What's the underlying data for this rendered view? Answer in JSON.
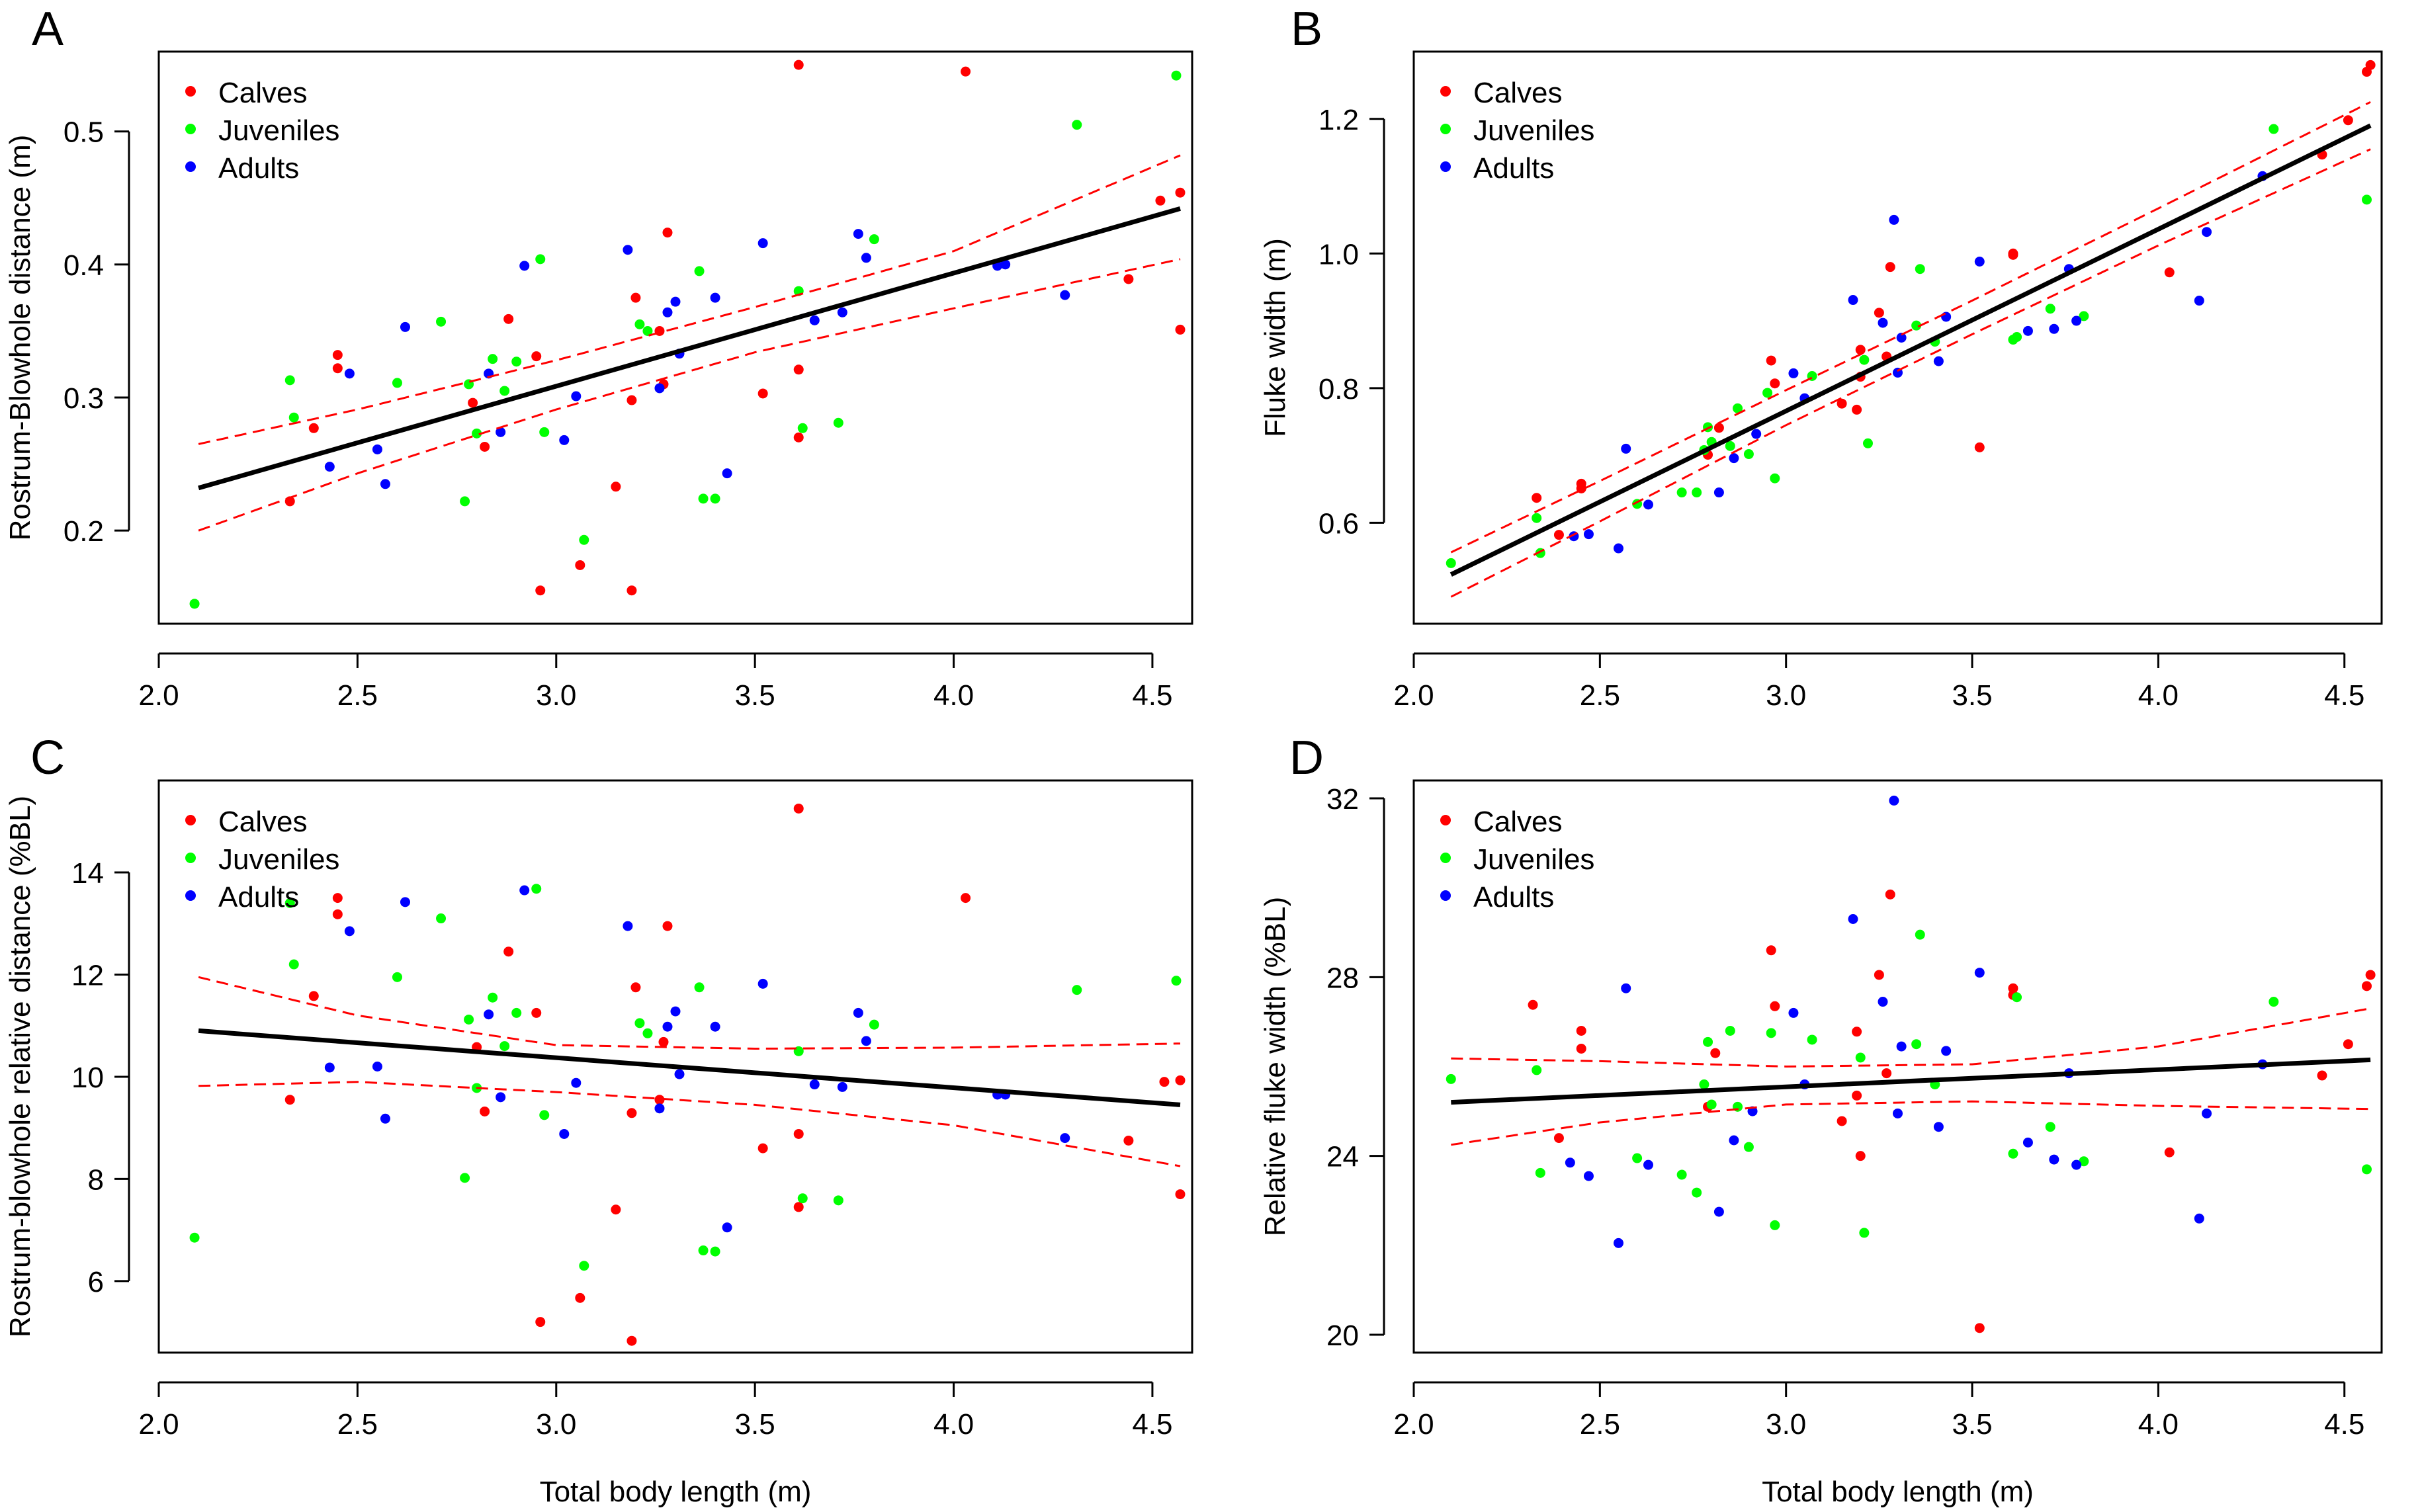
{
  "colors": {
    "calves": "#FF0000",
    "juveniles": "#00FF00",
    "adults": "#0000FF",
    "fit": "#000000",
    "ci": "#FF0000"
  },
  "chart_data": [
    {
      "type": "scatter",
      "panel_letter": "A",
      "xlabel": "",
      "ylabel": "Rostrum-Blowhole distance (m)",
      "xlim": [
        2.0,
        4.6
      ],
      "ylim": [
        0.13,
        0.56
      ],
      "xticks": [
        "2.0",
        "2.5",
        "3.0",
        "3.5",
        "4.0",
        "4.5"
      ],
      "yticks": [
        "0.2",
        "0.3",
        "0.4",
        "0.5"
      ],
      "legend": [
        "Calves",
        "Juveniles",
        "Adults"
      ],
      "legend_position": "top-left",
      "fit": {
        "x": [
          2.1,
          4.57
        ],
        "y": [
          0.232,
          0.442
        ]
      },
      "ci_upper": {
        "x": [
          2.1,
          2.5,
          3.0,
          3.5,
          4.0,
          4.57
        ],
        "y": [
          0.265,
          0.291,
          0.328,
          0.368,
          0.41,
          0.482
        ]
      },
      "ci_lower": {
        "x": [
          2.1,
          2.5,
          3.0,
          3.5,
          4.0,
          4.57
        ],
        "y": [
          0.2,
          0.243,
          0.291,
          0.334,
          0.367,
          0.404
        ]
      },
      "series": [
        {
          "name": "Calves",
          "x": [
            2.33,
            2.39,
            2.45,
            2.45,
            2.79,
            2.82,
            2.88,
            2.95,
            2.96,
            3.06,
            3.15,
            3.19,
            3.19,
            3.2,
            3.26,
            3.27,
            3.28,
            3.52,
            3.61,
            3.61,
            3.61,
            4.03,
            4.44,
            4.52,
            4.57,
            4.57
          ],
          "y": [
            0.222,
            0.277,
            0.332,
            0.322,
            0.296,
            0.263,
            0.359,
            0.331,
            0.155,
            0.174,
            0.233,
            0.155,
            0.298,
            0.375,
            0.35,
            0.31,
            0.424,
            0.303,
            0.55,
            0.321,
            0.27,
            0.545,
            0.389,
            0.448,
            0.454,
            0.351
          ]
        },
        {
          "name": "Juveniles",
          "x": [
            2.09,
            2.33,
            2.34,
            2.6,
            2.71,
            2.77,
            2.78,
            2.8,
            2.84,
            2.87,
            2.9,
            2.96,
            2.97,
            3.07,
            3.21,
            3.23,
            3.36,
            3.37,
            3.4,
            3.61,
            3.62,
            3.71,
            3.8,
            4.31,
            4.56
          ],
          "y": [
            0.145,
            0.313,
            0.285,
            0.311,
            0.357,
            0.222,
            0.31,
            0.273,
            0.329,
            0.305,
            0.327,
            0.404,
            0.274,
            0.193,
            0.355,
            0.35,
            0.395,
            0.224,
            0.224,
            0.38,
            0.277,
            0.281,
            0.419,
            0.505,
            0.542
          ]
        },
        {
          "name": "Adults",
          "x": [
            2.43,
            2.48,
            2.55,
            2.57,
            2.62,
            2.83,
            2.86,
            2.92,
            3.02,
            3.05,
            3.18,
            3.26,
            3.28,
            3.3,
            3.31,
            3.4,
            3.43,
            3.52,
            3.65,
            3.72,
            3.76,
            3.78,
            4.11,
            4.13,
            4.28
          ],
          "y": [
            0.248,
            0.318,
            0.261,
            0.235,
            0.353,
            0.318,
            0.274,
            0.399,
            0.268,
            0.301,
            0.411,
            0.307,
            0.364,
            0.372,
            0.333,
            0.375,
            0.243,
            0.416,
            0.358,
            0.364,
            0.423,
            0.405,
            0.399,
            0.4,
            0.377
          ]
        }
      ]
    },
    {
      "type": "scatter",
      "panel_letter": "B",
      "xlabel": "",
      "ylabel": "Fluke width (m)",
      "xlim": [
        2.0,
        4.6
      ],
      "ylim": [
        0.45,
        1.3
      ],
      "xticks": [
        "2.0",
        "2.5",
        "3.0",
        "3.5",
        "4.0",
        "4.5"
      ],
      "yticks": [
        "0.6",
        "0.8",
        "1.0",
        "1.2"
      ],
      "legend": [
        "Calves",
        "Juveniles",
        "Adults"
      ],
      "legend_position": "top-left",
      "fit": {
        "x": [
          2.1,
          4.57
        ],
        "y": [
          0.523,
          1.19
        ]
      },
      "ci_upper": {
        "x": [
          2.1,
          2.5,
          3.0,
          3.5,
          4.0,
          4.57
        ],
        "y": [
          0.556,
          0.662,
          0.797,
          0.93,
          1.067,
          1.225
        ]
      },
      "ci_lower": {
        "x": [
          2.1,
          2.5,
          3.0,
          3.5,
          4.0,
          4.57
        ],
        "y": [
          0.49,
          0.602,
          0.745,
          0.88,
          1.012,
          1.155
        ]
      },
      "series": [
        {
          "name": "Calves",
          "x": [
            2.33,
            2.39,
            2.45,
            2.45,
            2.79,
            2.82,
            2.96,
            2.97,
            3.15,
            3.19,
            3.2,
            3.2,
            3.25,
            3.27,
            3.28,
            3.52,
            3.61,
            3.61,
            4.03,
            4.44,
            4.51,
            4.56,
            4.57
          ],
          "y": [
            0.637,
            0.582,
            0.651,
            0.658,
            0.701,
            0.741,
            0.841,
            0.807,
            0.777,
            0.768,
            0.857,
            0.817,
            0.912,
            0.847,
            0.98,
            0.712,
            0.998,
            1.0,
            0.972,
            1.147,
            1.198,
            1.27,
            1.28
          ]
        },
        {
          "name": "Juveniles",
          "x": [
            2.1,
            2.33,
            2.34,
            2.6,
            2.72,
            2.76,
            2.78,
            2.79,
            2.8,
            2.85,
            2.87,
            2.9,
            2.95,
            2.97,
            3.07,
            3.21,
            3.22,
            3.35,
            3.36,
            3.4,
            3.61,
            3.62,
            3.71,
            3.8,
            4.31,
            4.56
          ],
          "y": [
            0.54,
            0.607,
            0.555,
            0.628,
            0.645,
            0.645,
            0.708,
            0.742,
            0.72,
            0.714,
            0.77,
            0.702,
            0.793,
            0.666,
            0.818,
            0.842,
            0.718,
            0.893,
            0.977,
            0.869,
            0.872,
            0.876,
            0.918,
            0.907,
            1.185,
            1.08
          ]
        },
        {
          "name": "Adults",
          "x": [
            2.43,
            2.47,
            2.55,
            2.57,
            2.63,
            2.82,
            2.86,
            2.92,
            3.02,
            3.05,
            3.18,
            3.26,
            3.29,
            3.3,
            3.31,
            3.41,
            3.43,
            3.52,
            3.65,
            3.72,
            3.76,
            3.78,
            4.11,
            4.13,
            4.28
          ],
          "y": [
            0.58,
            0.583,
            0.562,
            0.71,
            0.627,
            0.645,
            0.696,
            0.732,
            0.822,
            0.785,
            0.931,
            0.897,
            1.05,
            0.823,
            0.875,
            0.84,
            0.906,
            0.988,
            0.885,
            0.888,
            0.977,
            0.9,
            0.93,
            1.032,
            1.115
          ]
        }
      ]
    },
    {
      "type": "scatter",
      "panel_letter": "C",
      "xlabel": "Total body length (m)",
      "ylabel": "Rostrum-blowhole relative distance (%BL)",
      "xlim": [
        2.0,
        4.6
      ],
      "ylim": [
        4.6,
        15.8
      ],
      "xticks": [
        "2.0",
        "2.5",
        "3.0",
        "3.5",
        "4.0",
        "4.5"
      ],
      "yticks": [
        "6",
        "8",
        "10",
        "12",
        "14"
      ],
      "legend": [
        "Calves",
        "Juveniles",
        "Adults"
      ],
      "legend_position": "top-left",
      "fit": {
        "x": [
          2.1,
          4.57
        ],
        "y": [
          10.9,
          9.45
        ]
      },
      "ci_upper": {
        "x": [
          2.1,
          2.5,
          3.0,
          3.5,
          4.0,
          4.57
        ],
        "y": [
          11.95,
          11.2,
          10.62,
          10.55,
          10.57,
          10.65
        ]
      },
      "ci_lower": {
        "x": [
          2.1,
          2.5,
          3.0,
          3.5,
          4.0,
          4.57
        ],
        "y": [
          9.82,
          9.9,
          9.7,
          9.45,
          9.05,
          8.25
        ]
      },
      "series": [
        {
          "name": "Calves",
          "x": [
            2.33,
            2.39,
            2.45,
            2.45,
            2.8,
            2.82,
            2.88,
            2.95,
            2.96,
            3.06,
            3.15,
            3.19,
            3.19,
            3.2,
            3.26,
            3.27,
            3.28,
            3.52,
            3.61,
            3.61,
            3.61,
            4.03,
            4.44,
            4.53,
            4.57,
            4.57
          ],
          "y": [
            9.55,
            11.58,
            13.5,
            13.18,
            10.58,
            9.32,
            12.45,
            11.25,
            5.2,
            5.67,
            7.4,
            4.83,
            9.29,
            11.75,
            9.55,
            10.68,
            12.95,
            8.6,
            15.25,
            8.88,
            7.45,
            13.5,
            8.75,
            9.9,
            9.93,
            7.7
          ]
        },
        {
          "name": "Juveniles",
          "x": [
            2.09,
            2.33,
            2.34,
            2.6,
            2.71,
            2.77,
            2.78,
            2.8,
            2.84,
            2.87,
            2.9,
            2.95,
            2.97,
            3.07,
            3.21,
            3.23,
            3.36,
            3.37,
            3.4,
            3.61,
            3.62,
            3.71,
            3.8,
            4.31,
            4.56
          ],
          "y": [
            6.85,
            13.4,
            12.2,
            11.95,
            13.1,
            8.02,
            11.12,
            9.78,
            11.55,
            10.6,
            11.25,
            13.68,
            9.25,
            6.3,
            11.05,
            10.85,
            11.75,
            6.6,
            6.58,
            10.5,
            7.62,
            7.58,
            11.02,
            11.7,
            11.88
          ]
        },
        {
          "name": "Adults",
          "x": [
            2.43,
            2.48,
            2.55,
            2.57,
            2.62,
            2.83,
            2.86,
            2.92,
            3.02,
            3.05,
            3.18,
            3.26,
            3.28,
            3.3,
            3.31,
            3.4,
            3.43,
            3.52,
            3.65,
            3.72,
            3.76,
            3.78,
            4.11,
            4.13,
            4.28
          ],
          "y": [
            10.18,
            12.85,
            10.2,
            9.18,
            13.42,
            11.22,
            9.6,
            13.65,
            8.88,
            9.88,
            12.95,
            9.38,
            10.98,
            11.28,
            10.05,
            10.98,
            7.05,
            11.82,
            9.85,
            9.8,
            11.25,
            10.7,
            9.65,
            9.65,
            8.8
          ]
        }
      ]
    },
    {
      "type": "scatter",
      "panel_letter": "D",
      "xlabel": "Total body length (m)",
      "ylabel": "Relative fluke width (%BL)",
      "xlim": [
        2.0,
        4.6
      ],
      "ylim": [
        19.6,
        32.4
      ],
      "xticks": [
        "2.0",
        "2.5",
        "3.0",
        "3.5",
        "4.0",
        "4.5"
      ],
      "yticks": [
        "20",
        "24",
        "28",
        "32"
      ],
      "legend": [
        "Calves",
        "Juveniles",
        "Adults"
      ],
      "legend_position": "top-left",
      "fit": {
        "x": [
          2.1,
          4.57
        ],
        "y": [
          25.2,
          26.15
        ]
      },
      "ci_upper": {
        "x": [
          2.1,
          2.5,
          3.0,
          3.5,
          4.0,
          4.57
        ],
        "y": [
          26.18,
          26.12,
          26.0,
          26.05,
          26.45,
          27.3
        ]
      },
      "ci_lower": {
        "x": [
          2.1,
          2.5,
          3.0,
          3.5,
          4.0,
          4.57
        ],
        "y": [
          24.25,
          24.75,
          25.15,
          25.22,
          25.12,
          25.05
        ]
      },
      "series": [
        {
          "name": "Calves",
          "x": [
            2.32,
            2.39,
            2.45,
            2.45,
            2.79,
            2.81,
            2.96,
            2.97,
            3.15,
            3.19,
            3.19,
            3.2,
            3.25,
            3.27,
            3.28,
            3.52,
            3.61,
            3.61,
            4.03,
            4.44,
            4.51,
            4.56,
            4.57
          ],
          "y": [
            27.38,
            24.4,
            26.8,
            26.4,
            25.1,
            26.3,
            28.6,
            27.35,
            24.78,
            25.35,
            26.78,
            24.0,
            28.05,
            25.85,
            29.85,
            20.15,
            27.75,
            27.6,
            24.08,
            25.8,
            26.5,
            27.8,
            28.05
          ]
        },
        {
          "name": "Juveniles",
          "x": [
            2.1,
            2.33,
            2.34,
            2.6,
            2.72,
            2.76,
            2.78,
            2.79,
            2.8,
            2.85,
            2.87,
            2.9,
            2.96,
            2.97,
            3.07,
            3.2,
            3.21,
            3.35,
            3.36,
            3.4,
            3.61,
            3.62,
            3.71,
            3.8,
            4.31,
            4.56
          ],
          "y": [
            25.72,
            25.92,
            23.62,
            23.95,
            23.58,
            23.18,
            25.6,
            26.55,
            25.15,
            26.8,
            25.1,
            24.2,
            26.75,
            22.45,
            26.6,
            26.2,
            22.28,
            26.5,
            28.95,
            25.6,
            24.05,
            27.55,
            24.65,
            23.88,
            27.45,
            23.7
          ]
        },
        {
          "name": "Adults",
          "x": [
            2.42,
            2.47,
            2.55,
            2.57,
            2.63,
            2.82,
            2.86,
            2.91,
            3.02,
            3.05,
            3.18,
            3.26,
            3.29,
            3.3,
            3.31,
            3.41,
            3.43,
            3.52,
            3.65,
            3.72,
            3.76,
            3.78,
            4.11,
            4.13,
            4.28
          ],
          "y": [
            23.85,
            23.55,
            22.05,
            27.75,
            23.8,
            22.75,
            24.35,
            25.0,
            27.2,
            25.6,
            29.3,
            27.45,
            31.95,
            24.95,
            26.45,
            24.65,
            26.35,
            28.1,
            24.3,
            23.92,
            25.85,
            23.8,
            22.6,
            24.95,
            26.05
          ]
        }
      ]
    }
  ]
}
